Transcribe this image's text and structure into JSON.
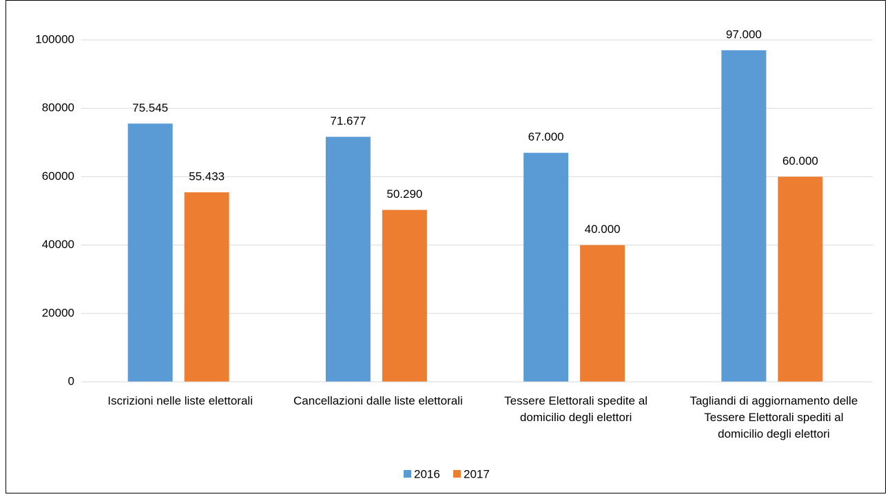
{
  "chart_data": {
    "type": "bar",
    "categories": [
      "Iscrizioni nelle liste elettorali",
      "Cancellazioni dalle liste elettorali",
      "Tessere Elettorali spedite al domicilio degli elettori",
      "Tagliandi di aggiornamento delle Tessere Elettorali spediti al domicilio degli elettori"
    ],
    "series": [
      {
        "name": "2016",
        "color": "#5b9bd5",
        "values": [
          75545,
          71677,
          67000,
          97000
        ],
        "value_labels": [
          "75.545",
          "71.677",
          "67.000",
          "97.000"
        ]
      },
      {
        "name": "2017",
        "color": "#ed7d31",
        "values": [
          55433,
          50290,
          40000,
          60000
        ],
        "value_labels": [
          "55.433",
          "50.290",
          "40.000",
          "60.000"
        ]
      }
    ],
    "ylim": [
      0,
      100000
    ],
    "yticks": [
      0,
      20000,
      40000,
      60000,
      80000,
      100000
    ],
    "grid": true,
    "legend": "bottom"
  }
}
